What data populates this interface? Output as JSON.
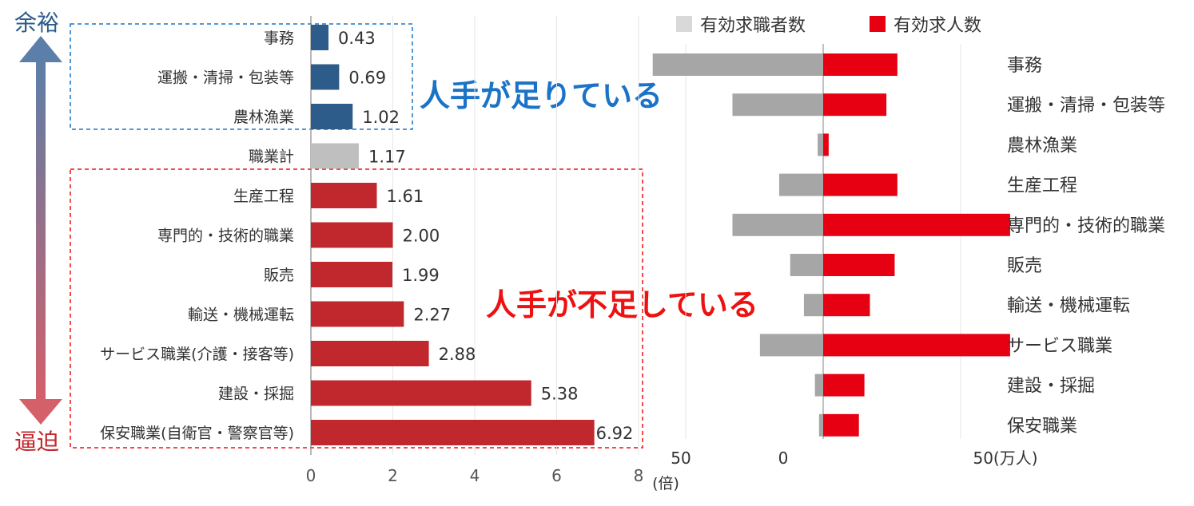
{
  "colors": {
    "blue": "#2d5c8a",
    "red": "#c0282d",
    "total_gray": "#bfbfbf",
    "seekers_gray": "#a6a6a6",
    "openings_red": "#e60012",
    "callout_blue": "#1a73c7",
    "callout_red": "#ee1111",
    "arrow_top": "#5b7fa8",
    "arrow_bottom": "#d4606a"
  },
  "side": {
    "top_label": "余裕",
    "bottom_label": "逼迫"
  },
  "callouts": {
    "enough": "人手が足りている",
    "shortage": "人手が不足している"
  },
  "chart_data": [
    {
      "type": "bar",
      "orientation": "horizontal",
      "categories": [
        "事務",
        "運搬・清掃・包装等",
        "農林漁業",
        "職業計",
        "生産工程",
        "専門的・技術的職業",
        "販売",
        "輸送・機械運転",
        "サービス職業(介護・接客等)",
        "建設・採掘",
        "保安職業(自衛官・警察官等)"
      ],
      "values": [
        0.43,
        0.69,
        1.02,
        1.17,
        1.61,
        2.0,
        1.99,
        2.27,
        2.88,
        5.38,
        6.92
      ],
      "value_labels": [
        "0.43",
        "0.69",
        "1.02",
        "1.17",
        "1.61",
        "2.00",
        "1.99",
        "2.27",
        "2.88",
        "5.38",
        "6.92"
      ],
      "bar_groups": [
        "blue",
        "blue",
        "blue",
        "gray",
        "red",
        "red",
        "red",
        "red",
        "red",
        "red",
        "red"
      ],
      "xlim": [
        0,
        8
      ],
      "xticks": [
        "0",
        "2",
        "4",
        "6",
        "8"
      ],
      "xlabel": "(倍)",
      "grid": true
    },
    {
      "type": "bar",
      "orientation": "diverging",
      "categories": [
        "事務",
        "運搬・清掃・包装等",
        "農林漁業",
        "生産工程",
        "専門的・技術的職業",
        "販売",
        "輸送・機械運転",
        "サービス職業",
        "建設・採掘",
        "保安職業"
      ],
      "series": [
        {
          "name": "有効求職者数",
          "values": [
            62,
            33,
            2,
            16,
            33,
            12,
            7,
            23,
            3,
            1.5
          ]
        },
        {
          "name": "有効求人数",
          "values": [
            27,
            23,
            2,
            27,
            68,
            26,
            17,
            68,
            15,
            13
          ]
        }
      ],
      "xlim": [
        -50,
        50
      ],
      "xtick_labels": [
        "50",
        "0",
        "50(万人)"
      ],
      "legend": "top",
      "grid": true
    }
  ]
}
